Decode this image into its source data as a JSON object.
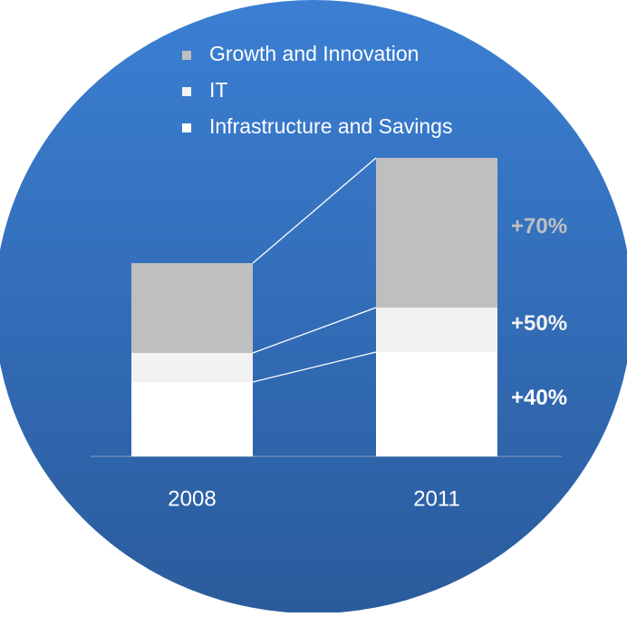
{
  "chart_data": {
    "type": "stacked_bar",
    "categories": [
      "2008",
      "2011"
    ],
    "series": [
      {
        "name": "Growth and Innovation",
        "color": "#bfbfbf",
        "values": [
          99,
          165
        ]
      },
      {
        "name": "IT",
        "color": "#f2f2f2",
        "values": [
          32,
          49
        ]
      },
      {
        "name": "Infrastructure and Savings",
        "color": "#ffffff",
        "values": [
          82,
          115
        ]
      }
    ],
    "annotations": [
      "+70%",
      "+50%",
      "+40%"
    ],
    "ylim": [
      0,
      330
    ]
  }
}
